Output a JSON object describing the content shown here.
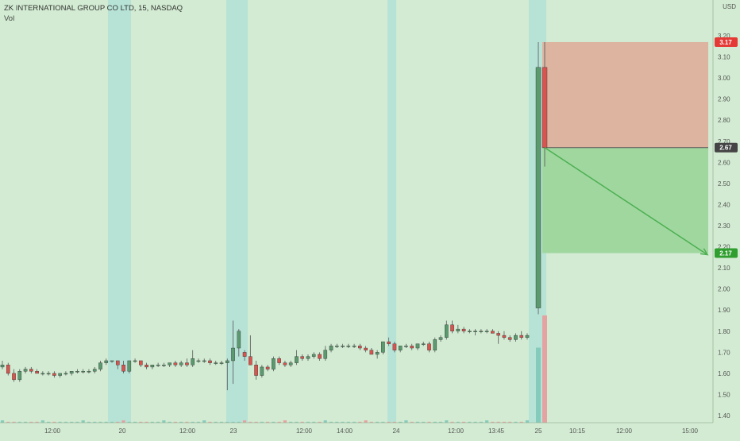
{
  "header": {
    "symbol_line": "ZK INTERNATIONAL GROUP CO LTD, 15, NASDAQ",
    "volume_label": "Vol"
  },
  "colors": {
    "background": "#d2ebd2",
    "up_candle": "#5a9a6e",
    "down_candle": "#d9534f",
    "session_band": "#aee0d8",
    "stop_zone": "#dcb4a0",
    "target_zone": "#9fd79f",
    "projection_arrow": "#4caf50",
    "badge_stop": "#e53935",
    "badge_entry": "#444444",
    "badge_target": "#2e9e2e"
  },
  "chart_data": {
    "type": "candlestick",
    "title": "ZK INTERNATIONAL GROUP CO LTD, 15, NASDAQ",
    "currency": "USD",
    "y_axis": {
      "range": [
        1.35,
        3.25
      ],
      "tick_labels": [
        "3.20",
        "3.10",
        "3.00",
        "2.90",
        "2.80",
        "2.70",
        "2.60",
        "2.50",
        "2.40",
        "2.30",
        "2.20",
        "2.10",
        "2.00",
        "1.90",
        "1.80",
        "1.70",
        "1.60",
        "1.50",
        "1.40"
      ]
    },
    "x_axis": {
      "tick_labels": [
        "12:00",
        "20",
        "12:00",
        "23",
        "12:00",
        "14:00",
        "24",
        "12:00",
        "13:45",
        "25",
        "10:15",
        "12:00",
        "15:00"
      ]
    },
    "grid": false,
    "price_badges": [
      {
        "label": "3.17",
        "role": "stop"
      },
      {
        "label": "2.67",
        "role": "entry"
      },
      {
        "label": "2.17",
        "role": "target"
      }
    ],
    "short_position": {
      "entry": 2.67,
      "stop": 3.17,
      "target": 2.17
    },
    "candles": [
      [
        1.63,
        1.66,
        1.62,
        1.64
      ],
      [
        1.64,
        1.65,
        1.59,
        1.6
      ],
      [
        1.6,
        1.62,
        1.56,
        1.57
      ],
      [
        1.57,
        1.62,
        1.56,
        1.61
      ],
      [
        1.61,
        1.63,
        1.6,
        1.62
      ],
      [
        1.62,
        1.63,
        1.6,
        1.61
      ],
      [
        1.61,
        1.62,
        1.6,
        1.6
      ],
      [
        1.6,
        1.61,
        1.59,
        1.6
      ],
      [
        1.6,
        1.61,
        1.59,
        1.6
      ],
      [
        1.6,
        1.61,
        1.58,
        1.59
      ],
      [
        1.59,
        1.6,
        1.58,
        1.6
      ],
      [
        1.6,
        1.61,
        1.59,
        1.6
      ],
      [
        1.6,
        1.61,
        1.59,
        1.61
      ],
      [
        1.61,
        1.62,
        1.6,
        1.61
      ],
      [
        1.61,
        1.62,
        1.6,
        1.61
      ],
      [
        1.61,
        1.62,
        1.6,
        1.61
      ],
      [
        1.61,
        1.63,
        1.6,
        1.62
      ],
      [
        1.62,
        1.66,
        1.61,
        1.65
      ],
      [
        1.65,
        1.67,
        1.64,
        1.66
      ],
      [
        1.66,
        1.66,
        1.65,
        1.66
      ],
      [
        1.66,
        1.66,
        1.62,
        1.64
      ],
      [
        1.64,
        1.66,
        1.6,
        1.61
      ],
      [
        1.61,
        1.66,
        1.6,
        1.66
      ],
      [
        1.66,
        1.67,
        1.65,
        1.66
      ],
      [
        1.66,
        1.66,
        1.63,
        1.64
      ],
      [
        1.64,
        1.65,
        1.62,
        1.63
      ],
      [
        1.63,
        1.64,
        1.62,
        1.64
      ],
      [
        1.64,
        1.65,
        1.63,
        1.64
      ],
      [
        1.64,
        1.65,
        1.63,
        1.64
      ],
      [
        1.64,
        1.65,
        1.63,
        1.65
      ],
      [
        1.65,
        1.66,
        1.63,
        1.64
      ],
      [
        1.64,
        1.66,
        1.63,
        1.65
      ],
      [
        1.65,
        1.67,
        1.63,
        1.64
      ],
      [
        1.64,
        1.71,
        1.63,
        1.67
      ],
      [
        1.66,
        1.67,
        1.65,
        1.66
      ],
      [
        1.66,
        1.67,
        1.65,
        1.66
      ],
      [
        1.66,
        1.67,
        1.64,
        1.65
      ],
      [
        1.65,
        1.66,
        1.64,
        1.65
      ],
      [
        1.65,
        1.66,
        1.64,
        1.65
      ],
      [
        1.65,
        1.67,
        1.52,
        1.66
      ],
      [
        1.66,
        1.85,
        1.55,
        1.72
      ],
      [
        1.72,
        1.81,
        1.68,
        1.8
      ],
      [
        1.7,
        1.71,
        1.66,
        1.68
      ],
      [
        1.68,
        1.78,
        1.64,
        1.64
      ],
      [
        1.64,
        1.66,
        1.57,
        1.59
      ],
      [
        1.59,
        1.64,
        1.58,
        1.63
      ],
      [
        1.63,
        1.64,
        1.61,
        1.62
      ],
      [
        1.62,
        1.68,
        1.61,
        1.67
      ],
      [
        1.67,
        1.68,
        1.64,
        1.65
      ],
      [
        1.65,
        1.66,
        1.63,
        1.64
      ],
      [
        1.64,
        1.66,
        1.63,
        1.65
      ],
      [
        1.65,
        1.71,
        1.64,
        1.68
      ],
      [
        1.68,
        1.69,
        1.66,
        1.67
      ],
      [
        1.67,
        1.69,
        1.66,
        1.68
      ],
      [
        1.68,
        1.7,
        1.67,
        1.69
      ],
      [
        1.69,
        1.7,
        1.66,
        1.67
      ],
      [
        1.67,
        1.73,
        1.66,
        1.71
      ],
      [
        1.71,
        1.74,
        1.7,
        1.73
      ],
      [
        1.73,
        1.74,
        1.72,
        1.73
      ],
      [
        1.73,
        1.74,
        1.72,
        1.73
      ],
      [
        1.73,
        1.74,
        1.72,
        1.73
      ],
      [
        1.73,
        1.74,
        1.72,
        1.73
      ],
      [
        1.73,
        1.74,
        1.71,
        1.72
      ],
      [
        1.72,
        1.73,
        1.7,
        1.71
      ],
      [
        1.71,
        1.72,
        1.69,
        1.69
      ],
      [
        1.69,
        1.71,
        1.67,
        1.7
      ],
      [
        1.7,
        1.75,
        1.69,
        1.75
      ],
      [
        1.75,
        1.77,
        1.73,
        1.74
      ],
      [
        1.74,
        1.75,
        1.7,
        1.71
      ],
      [
        1.71,
        1.73,
        1.7,
        1.73
      ],
      [
        1.73,
        1.74,
        1.72,
        1.73
      ],
      [
        1.73,
        1.74,
        1.71,
        1.72
      ],
      [
        1.72,
        1.74,
        1.71,
        1.74
      ],
      [
        1.74,
        1.75,
        1.73,
        1.74
      ],
      [
        1.74,
        1.75,
        1.7,
        1.71
      ],
      [
        1.71,
        1.77,
        1.7,
        1.76
      ],
      [
        1.76,
        1.78,
        1.75,
        1.77
      ],
      [
        1.77,
        1.85,
        1.76,
        1.83
      ],
      [
        1.83,
        1.85,
        1.79,
        1.8
      ],
      [
        1.8,
        1.83,
        1.79,
        1.81
      ],
      [
        1.81,
        1.82,
        1.79,
        1.8
      ],
      [
        1.8,
        1.81,
        1.79,
        1.8
      ],
      [
        1.8,
        1.81,
        1.78,
        1.8
      ],
      [
        1.8,
        1.81,
        1.79,
        1.8
      ],
      [
        1.8,
        1.81,
        1.79,
        1.8
      ],
      [
        1.8,
        1.81,
        1.79,
        1.79
      ],
      [
        1.79,
        1.8,
        1.74,
        1.78
      ],
      [
        1.78,
        1.8,
        1.76,
        1.77
      ],
      [
        1.77,
        1.78,
        1.75,
        1.76
      ],
      [
        1.76,
        1.79,
        1.75,
        1.78
      ],
      [
        1.78,
        1.8,
        1.76,
        1.77
      ],
      [
        1.77,
        1.79,
        1.76,
        1.78
      ],
      [
        1.91,
        3.17,
        1.88,
        3.05
      ],
      [
        3.05,
        3.17,
        2.58,
        2.67
      ]
    ],
    "volume_tail": [
      0.7,
      1.0
    ]
  }
}
